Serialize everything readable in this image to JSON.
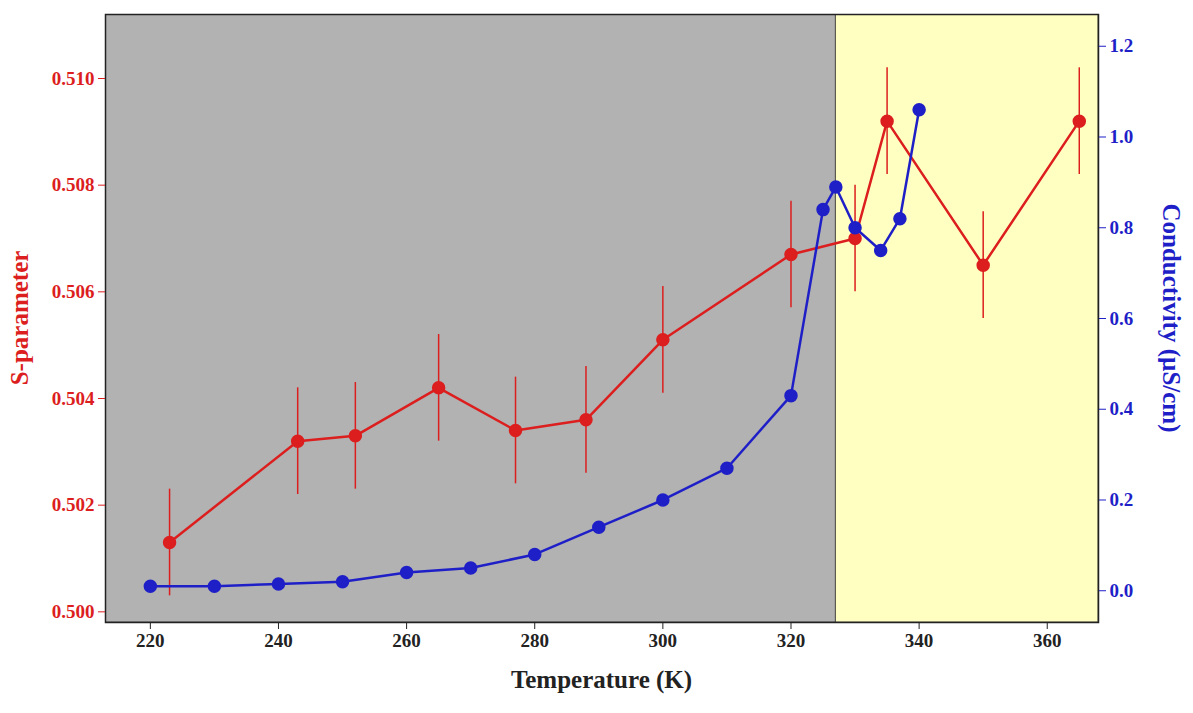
{
  "chart_data": {
    "type": "line",
    "x_label": "Temperature (K)",
    "y_label": "S-parameter",
    "y2_label": "Conductivity (µS/cm)",
    "xlim": [
      213,
      368
    ],
    "xticks": [
      220,
      240,
      260,
      280,
      300,
      320,
      340,
      360
    ],
    "ylim": [
      0.4998,
      0.5112
    ],
    "yticks": [
      {
        "value": 0.5,
        "label": "0.500"
      },
      0.502,
      0.504,
      0.506,
      0.508,
      {
        "value": 0.51,
        "label": "0.510"
      }
    ],
    "y2lim": [
      -0.07,
      1.27
    ],
    "y2ticks": [
      {
        "value": 0,
        "label": "0.0"
      },
      0.2,
      0.4,
      0.6,
      0.8,
      {
        "value": 1,
        "label": "1.0"
      },
      1.2
    ],
    "grid": false,
    "regions": [
      {
        "x0": 213,
        "x1": 327,
        "color": "#b2b2b2"
      },
      {
        "x0": 327,
        "x1": 368,
        "color": "#ffffc2"
      }
    ],
    "series": [
      {
        "axis": "y",
        "color": "#dc1e1e",
        "marker": "circle",
        "line_style": "solid",
        "x": [
          223,
          243,
          252,
          265,
          277,
          288,
          300,
          320,
          330,
          335,
          350,
          365
        ],
        "values": [
          0.5013,
          0.5032,
          0.5033,
          0.5042,
          0.5034,
          0.5036,
          0.5051,
          0.5067,
          0.507,
          0.5092,
          0.5065,
          0.5092
        ],
        "errors": [
          0.001,
          0.001,
          0.001,
          0.001,
          0.001,
          0.001,
          0.001,
          0.001,
          0.001,
          0.001,
          0.001,
          0.001
        ]
      },
      {
        "axis": "y2",
        "color": "#1f1fc8",
        "marker": "circle",
        "line_style": "solid",
        "x": [
          220,
          230,
          240,
          250,
          260,
          270,
          280,
          290,
          300,
          310,
          320,
          325,
          327,
          330,
          334,
          337,
          340
        ],
        "values": [
          0.01,
          0.01,
          0.015,
          0.02,
          0.04,
          0.05,
          0.08,
          0.14,
          0.2,
          0.27,
          0.43,
          0.84,
          0.89,
          0.8,
          0.75,
          0.82,
          1.06
        ]
      }
    ]
  }
}
